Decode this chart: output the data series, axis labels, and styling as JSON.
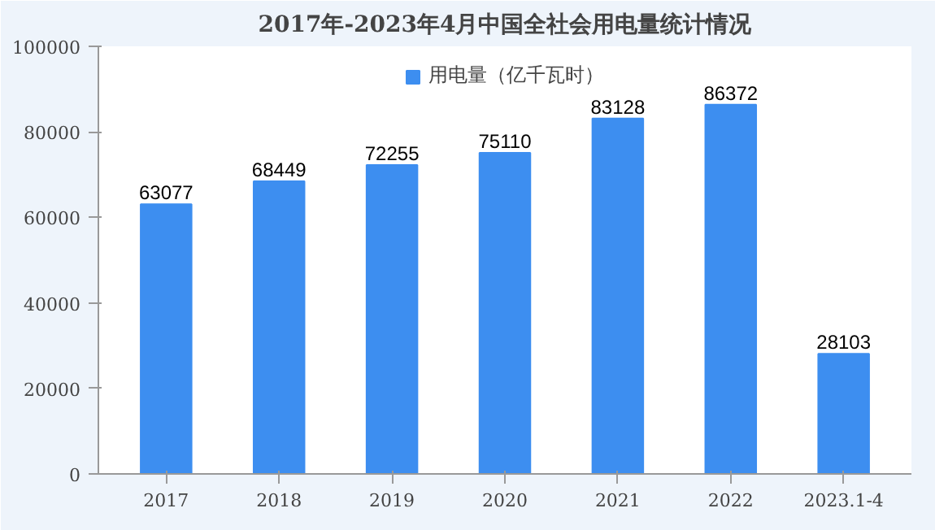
{
  "chart_data": {
    "type": "bar",
    "title": "2017年-2023年4月中国全社会用电量统计情况",
    "categories": [
      "2017",
      "2018",
      "2019",
      "2020",
      "2021",
      "2022",
      "2023.1-4"
    ],
    "series": [
      {
        "name": "用电量（亿千瓦时）",
        "color": "#3d8ef0",
        "values": [
          63077,
          68449,
          72255,
          75110,
          83128,
          86372,
          28103
        ]
      }
    ],
    "ylim": [
      0,
      100000
    ],
    "yticks": [
      0,
      20000,
      40000,
      60000,
      80000,
      100000
    ],
    "data_labels": true,
    "legend": "top",
    "grid": false
  }
}
